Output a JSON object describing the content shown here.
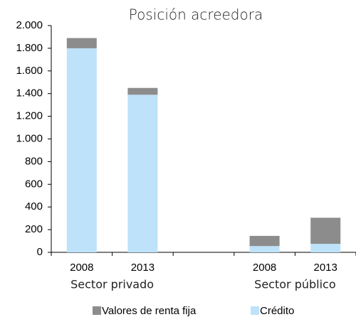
{
  "chart_data": {
    "type": "stacked_bar",
    "title": "Posición acreedora",
    "categories": [
      "2008",
      "2013",
      null,
      "2008",
      "2013"
    ],
    "group_labels": [
      "Sector privado",
      "Sector público"
    ],
    "series": [
      {
        "name": "Crédito",
        "color": "#bde2fa",
        "values": [
          1800,
          1390,
          null,
          55,
          75
        ]
      },
      {
        "name": "Valores de renta fija",
        "color": "#8c8c8c",
        "values": [
          90,
          60,
          null,
          90,
          230
        ]
      }
    ],
    "ylim": [
      0,
      2000
    ],
    "yticks": [
      0,
      200,
      400,
      600,
      800,
      {
        "value": 1000,
        "label": "1.000"
      },
      {
        "value": 1200,
        "label": "1.200"
      },
      {
        "value": 1400,
        "label": "1.400"
      },
      {
        "value": 1600,
        "label": "1.600"
      },
      {
        "value": 1800,
        "label": "1.800"
      },
      {
        "value": 2000,
        "label": "2.000"
      }
    ]
  }
}
